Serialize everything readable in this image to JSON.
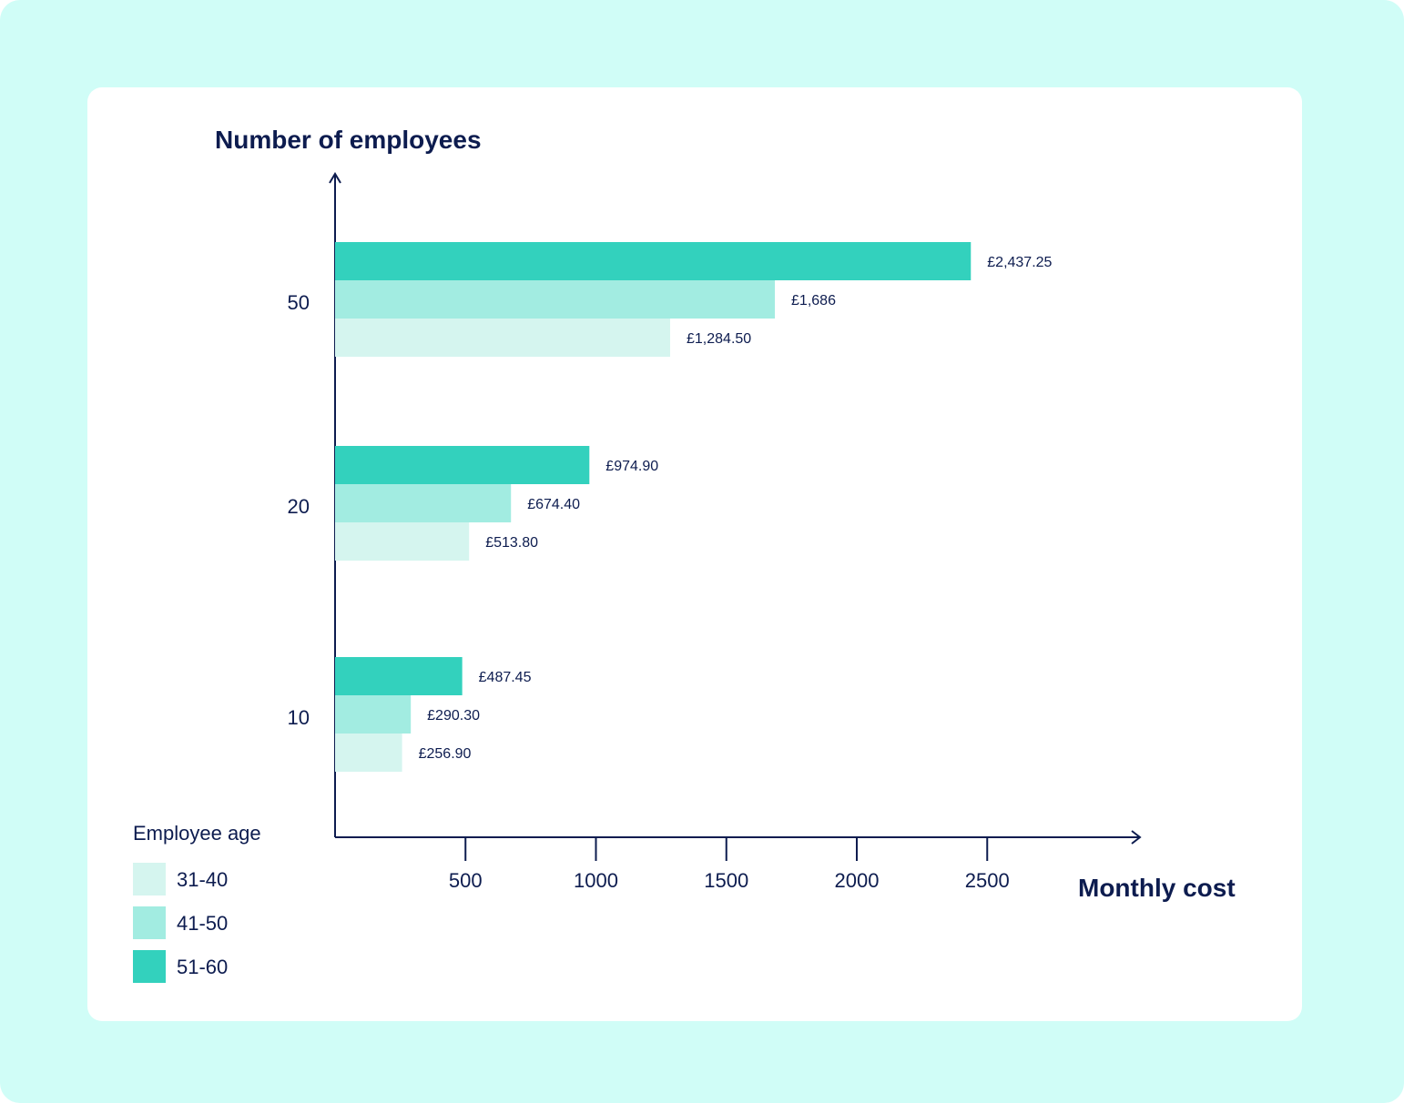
{
  "chart_data": {
    "type": "bar",
    "orientation": "horizontal",
    "xlabel": "Monthly cost",
    "ylabel": "Number of employees",
    "categories": [
      "50",
      "20",
      "10"
    ],
    "x_ticks": [
      "500",
      "1000",
      "1500",
      "2000",
      "2500"
    ],
    "legend_title": "Employee age",
    "legend_position": "bottom-left",
    "grid": false,
    "series": [
      {
        "name": "51-60",
        "color": "#33d1bd",
        "values": [
          2437.25,
          974.9,
          487.45
        ],
        "labels": [
          "£2,437.25",
          "£974.90",
          "£487.45"
        ]
      },
      {
        "name": "41-50",
        "color": "#a2ece1",
        "values": [
          1686,
          674.4,
          290.3
        ],
        "labels": [
          "£1,686",
          "£674.40",
          "£290.30"
        ]
      },
      {
        "name": "31-40",
        "color": "#d5f5ef",
        "values": [
          1284.5,
          513.8,
          256.9
        ],
        "labels": [
          "£1,284.50",
          "£513.80",
          "£256.90"
        ]
      }
    ],
    "legend": [
      {
        "name": "31-40",
        "color": "#d5f5ef"
      },
      {
        "name": "41-50",
        "color": "#a2ece1"
      },
      {
        "name": "51-60",
        "color": "#33d1bd"
      }
    ]
  }
}
